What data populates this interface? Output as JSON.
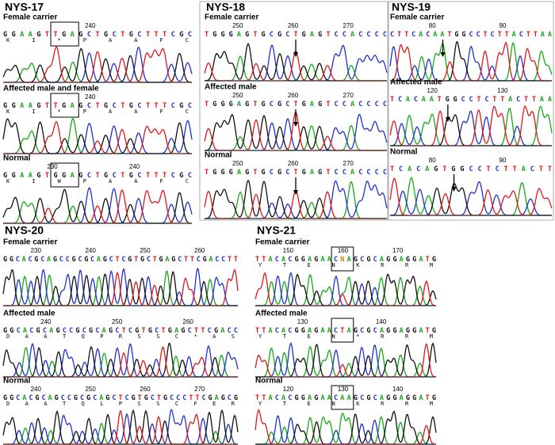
{
  "panels": [
    {
      "title": "NYS-17",
      "subpanels": [
        {
          "label": "Female carrier",
          "ruler": [
            240
          ],
          "sequence": "GGAAGTTGAGCTGCTGCTTTCGC",
          "amino_acids": "K I * P A A F C"
        },
        {
          "label": "Affected male and female",
          "ruler": [
            240
          ],
          "sequence": "GGAAGTTGAGCTGCTGCTTTCGC",
          "amino_acids": "K I * P A A F C"
        },
        {
          "label": "Normal",
          "ruler": [
            230,
            240
          ],
          "sequence": "GGAAGTGGAGCTGCTGCTTTCGC",
          "amino_acids": "K I W P A A F C"
        }
      ]
    },
    {
      "title": "NYS-18",
      "subpanels": [
        {
          "label": "Female carrier",
          "ruler": [
            250,
            260,
            270
          ],
          "sequence": "TGGGAGTGCGCTGAGTCCACCCC"
        },
        {
          "label": "Affected male",
          "ruler": [
            250,
            260,
            270
          ],
          "sequence": "TGGGAGTGCGCTGAGTCCACCCC"
        },
        {
          "label": "Normal",
          "ruler": [
            250,
            260,
            270
          ],
          "sequence": "TGGGAGTGCGCTGAGTCCACCCC"
        }
      ]
    },
    {
      "title": "NYS-19",
      "subpanels": [
        {
          "label": "Female carrier",
          "ruler": [
            80,
            90
          ],
          "sequence": "CTTCACAATGGCCTCTTACTTAA"
        },
        {
          "label": "Affected male",
          "ruler": [
            120,
            130
          ],
          "sequence": "TCACAATGGCCTCTTACTTAA"
        },
        {
          "label": "Normal",
          "ruler": [
            80,
            90
          ],
          "sequence": "TCACAGTGGCCTCTTACTT"
        }
      ]
    },
    {
      "title": "NYS-20",
      "subpanels": [
        {
          "label": "Female carrier",
          "ruler": [
            230,
            240,
            250,
            260
          ],
          "sequence": "GGCACGCAGCCGCGCAGCTCGTGCTGAGCTTCGACCTT"
        },
        {
          "label": "Affected male",
          "ruler": [
            240,
            250,
            260
          ],
          "sequence": "GGCACGCAGCCGCGCAGCTCGTGCTGAGCTTCGACC",
          "amino_acids": "D A A T Q P R S S C * A S"
        },
        {
          "label": "Normal",
          "ruler": [
            240,
            250,
            260,
            270
          ],
          "sequence": "GGCACGCAGCCGCGCAGCTCGTGCTGCCCTTCGAGCG",
          "amino_acids": "D A A T Q L P S S C F E R"
        }
      ]
    },
    {
      "title": "NYS-21",
      "subpanels": [
        {
          "label": "Female carrier",
          "ruler": [
            150,
            160,
            170
          ],
          "sequence": "TTACACGGAGAACNAGCGCAGGAGGATG",
          "amino_acids": "Y T E N K R R M"
        },
        {
          "label": "Affected male",
          "ruler": [
            130,
            140
          ],
          "sequence": "TTACACGGAGAACTAGCGCAGGAGGATG",
          "amino_acids": "Y T E N * R R M"
        },
        {
          "label": "Normal",
          "ruler": [
            120,
            130,
            140
          ],
          "sequence": "TTACACGGAGAACAAGCGCAGGAGGATG",
          "amino_acids": "Y T E N K R R M"
        }
      ]
    }
  ]
}
